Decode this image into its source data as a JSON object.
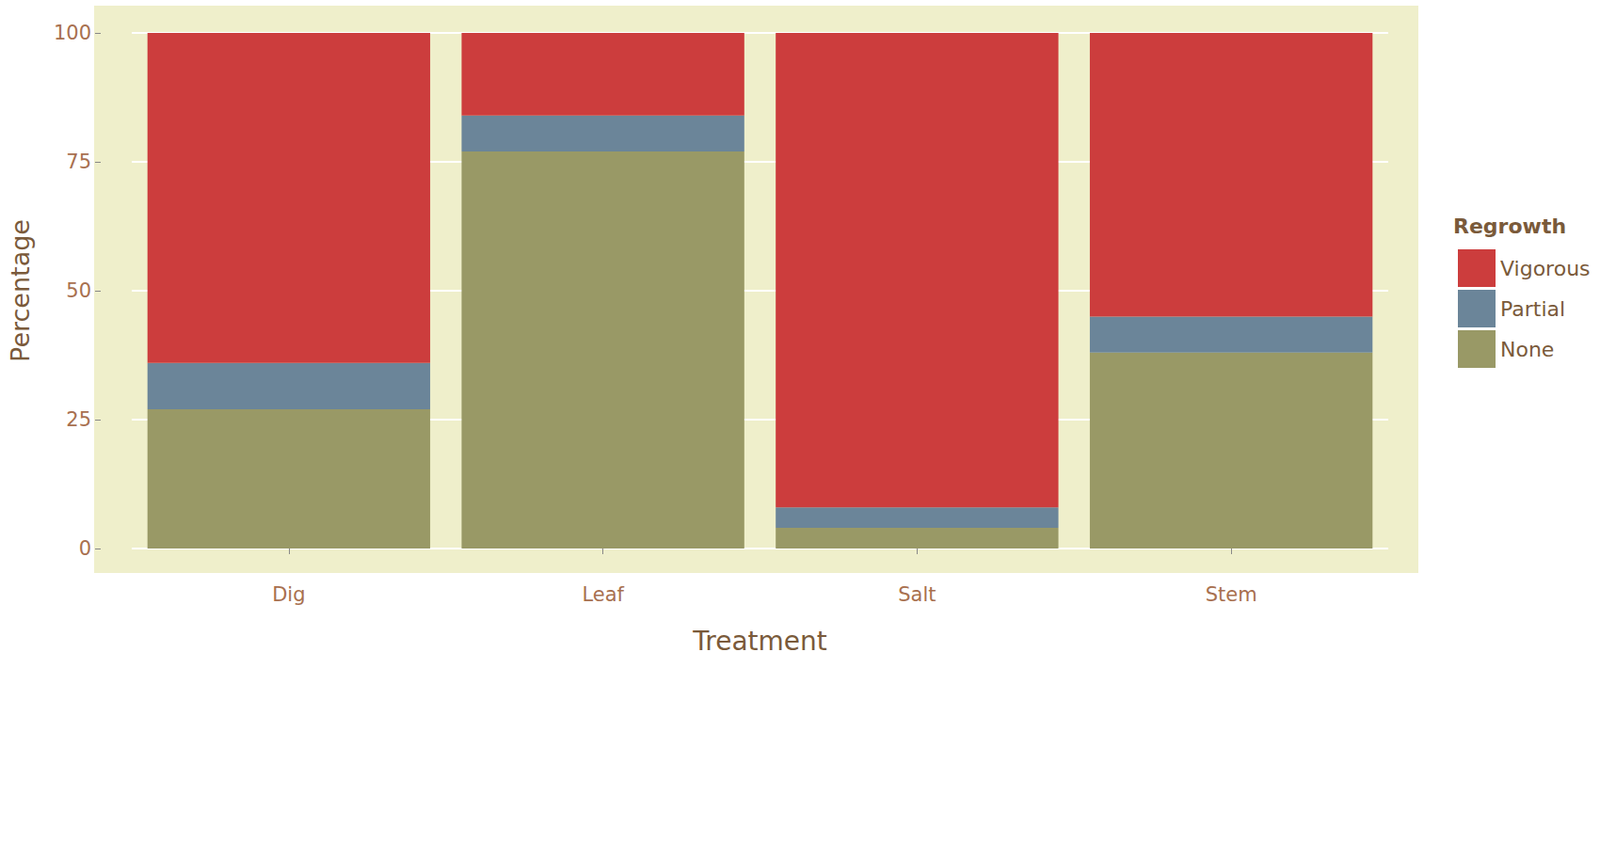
{
  "chart_data": {
    "type": "bar",
    "stacked": true,
    "x_label": "Treatment",
    "y_label": "Percentage",
    "legend_title": "Regrowth",
    "categories": [
      "Dig",
      "Leaf",
      "Salt",
      "Stem"
    ],
    "series": [
      {
        "name": "Vigorous",
        "color": "#cc3d3d",
        "values": [
          64,
          16,
          92,
          55
        ]
      },
      {
        "name": "Partial",
        "color": "#6b8599",
        "values": [
          9,
          7,
          4,
          7
        ]
      },
      {
        "name": "None",
        "color": "#999966",
        "values": [
          27,
          77,
          4,
          38
        ]
      }
    ],
    "ylim": [
      0,
      100
    ],
    "yticks": [
      0,
      25,
      50,
      75,
      100
    ],
    "grid": true,
    "legend": "right"
  }
}
